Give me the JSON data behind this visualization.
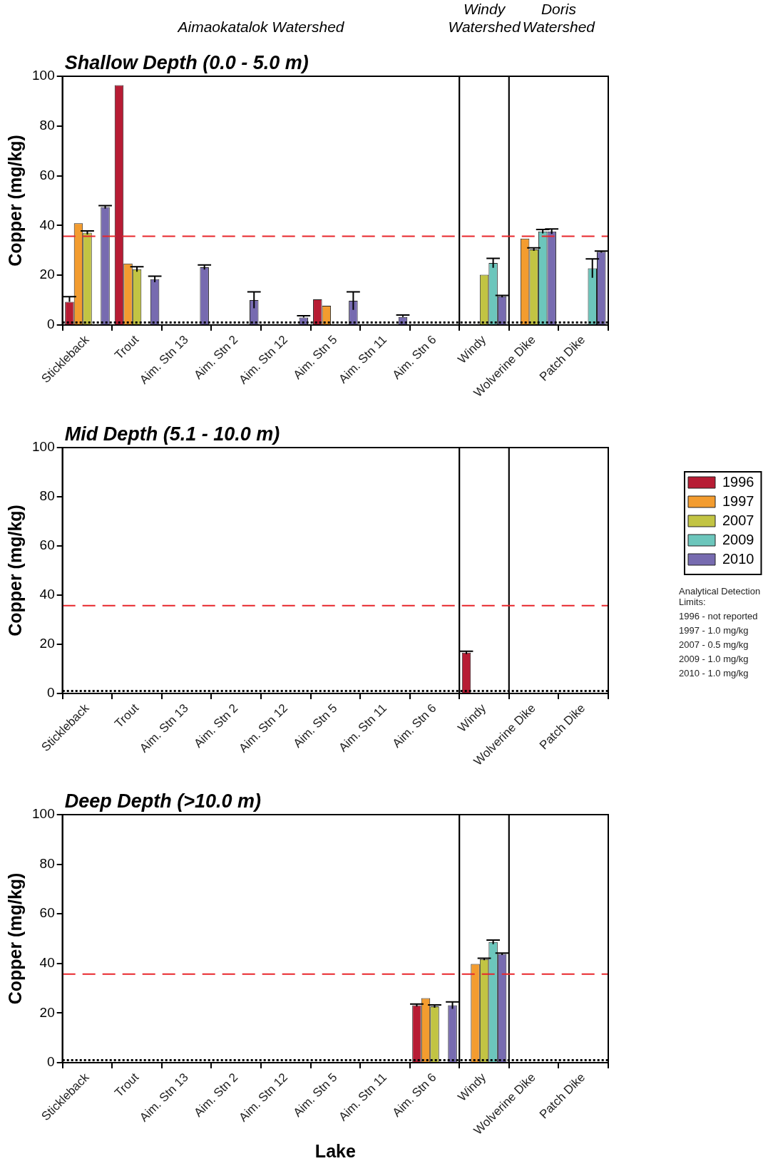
{
  "chart_data": [
    {
      "type": "bar",
      "title": "Shallow Depth (0.0 - 5.0 m)",
      "ylabel": "Copper (mg/kg)",
      "categories": [
        "Stickleback",
        "Trout",
        "Aim. Stn 13",
        "Aim. Stn 2",
        "Aim. Stn 12",
        "Aim. Stn 5",
        "Aim. Stn 11",
        "Aim. Stn 6",
        "Windy",
        "Wolverine Dike",
        "Patch Dike"
      ],
      "series": [
        {
          "color": "#b71c34",
          "values": [
            9.3,
            96.4,
            null,
            null,
            null,
            10.3,
            null,
            null,
            null,
            null,
            null
          ],
          "errors": [
            [
              9.3,
              11.4
            ],
            null,
            null,
            null,
            null,
            null,
            null,
            null,
            null,
            null,
            null
          ]
        },
        {
          "color": "#f39c2f",
          "values": [
            40.9,
            24.7,
            null,
            null,
            null,
            7.7,
            null,
            null,
            null,
            34.7,
            null
          ],
          "errors": [
            null,
            null,
            null,
            null,
            null,
            null,
            null,
            null,
            null,
            null,
            null
          ]
        },
        {
          "color": "#c2c443",
          "values": [
            37.1,
            22.4,
            null,
            null,
            null,
            null,
            null,
            null,
            20.2,
            30.4,
            null
          ],
          "errors": [
            0.7,
            1.0,
            null,
            null,
            null,
            null,
            null,
            null,
            null,
            0.6,
            null
          ]
        },
        {
          "color": "#6cc6bc",
          "values": [
            null,
            null,
            null,
            null,
            null,
            null,
            null,
            null,
            24.9,
            37.6,
            22.8
          ],
          "errors": [
            null,
            null,
            null,
            null,
            null,
            null,
            null,
            null,
            1.9,
            0.8,
            3.8
          ]
        },
        {
          "color": "#776bb0",
          "values": [
            47.4,
            18.4,
            23.2,
            10.0,
            3.0,
            9.7,
            3.2,
            null,
            11.5,
            37.6,
            29.4
          ],
          "errors": [
            0.6,
            1.2,
            0.9,
            3.3,
            [
              3.0,
              3.7
            ],
            3.6,
            [
              3.2,
              4.0
            ],
            null,
            0.4,
            1.0,
            0.3
          ]
        }
      ],
      "ylim": [
        0,
        100
      ],
      "yticks": [
        0,
        20,
        40,
        60,
        80,
        100
      ],
      "ref_lines": [
        {
          "axis": "y",
          "value": 35.7,
          "color": "#e8262b",
          "line_style": "dashed"
        },
        {
          "axis": "y",
          "value": 1,
          "color": "#000000",
          "line_style": "dotted"
        }
      ],
      "bands": [
        {
          "axis": "x",
          "from": "Stickleback",
          "to": "Aim. Stn 6",
          "label": "Aimaokatalok Watershed",
          "color": "#ffffff"
        },
        {
          "axis": "x",
          "from": "Windy",
          "to": "Windy",
          "label": "Windy Watershed",
          "color": "#ffffff"
        },
        {
          "axis": "x",
          "from": "Wolverine Dike",
          "to": "Patch Dike",
          "label": "Doris Watershed",
          "color": "#ffffff"
        }
      ]
    },
    {
      "type": "bar",
      "title": "Mid Depth (5.1 - 10.0 m)",
      "ylabel": "Copper (mg/kg)",
      "categories": [
        "Stickleback",
        "Trout",
        "Aim. Stn 13",
        "Aim. Stn 2",
        "Aim. Stn 12",
        "Aim. Stn 5",
        "Aim. Stn 11",
        "Aim. Stn 6",
        "Windy",
        "Wolverine Dike",
        "Patch Dike"
      ],
      "series": [
        {
          "name": "1996",
          "color": "#b71c34",
          "values": [
            null,
            null,
            null,
            null,
            null,
            null,
            null,
            null,
            16.6,
            null,
            null
          ],
          "errors": [
            null,
            null,
            null,
            null,
            null,
            null,
            null,
            null,
            0.6,
            null,
            null
          ]
        },
        {
          "name": "1997",
          "color": "#f39c2f",
          "values": [
            null,
            null,
            null,
            null,
            null,
            null,
            null,
            null,
            null,
            null,
            null
          ]
        },
        {
          "name": "2007",
          "color": "#c2c443",
          "values": [
            null,
            null,
            null,
            null,
            null,
            null,
            null,
            null,
            null,
            null,
            null
          ]
        },
        {
          "name": "2009",
          "color": "#6cc6bc",
          "values": [
            null,
            null,
            null,
            null,
            null,
            null,
            null,
            null,
            null,
            null,
            null
          ]
        },
        {
          "name": "2010",
          "color": "#776bb0",
          "values": [
            null,
            null,
            null,
            null,
            null,
            null,
            null,
            null,
            null,
            null,
            null
          ]
        }
      ],
      "ylim": [
        0,
        100
      ],
      "yticks": [
        0,
        20,
        40,
        60,
        80,
        100
      ],
      "legend": "right",
      "ref_lines": [
        {
          "axis": "y",
          "value": 35.7,
          "color": "#e8262b",
          "line_style": "dashed"
        },
        {
          "axis": "y",
          "value": 1,
          "color": "#000000",
          "line_style": "dotted"
        }
      ],
      "bands": [
        {
          "axis": "x",
          "from": "Stickleback",
          "to": "Aim. Stn 6",
          "color": "#ffffff"
        },
        {
          "axis": "x",
          "from": "Windy",
          "to": "Windy",
          "color": "#ffffff"
        },
        {
          "axis": "x",
          "from": "Wolverine Dike",
          "to": "Patch Dike",
          "color": "#ffffff"
        }
      ],
      "annotations": [
        "Analytical Detection Limits:",
        "1996 - not reported",
        "1997 - 1.0 mg/kg",
        "2007 - 0.5 mg/kg",
        "2009 - 1.0 mg/kg",
        "2010 - 1.0 mg/kg"
      ]
    },
    {
      "type": "bar",
      "title": "Deep Depth (>10.0 m)",
      "ylabel": "Copper (mg/kg)",
      "xlabel": "Lake",
      "categories": [
        "Stickleback",
        "Trout",
        "Aim. Stn 13",
        "Aim. Stn 2",
        "Aim. Stn 12",
        "Aim. Stn 5",
        "Aim. Stn 11",
        "Aim. Stn 6",
        "Windy",
        "Wolverine Dike",
        "Patch Dike"
      ],
      "series": [
        {
          "color": "#b71c34",
          "values": [
            null,
            null,
            null,
            null,
            null,
            null,
            null,
            23.1,
            null,
            null,
            null
          ],
          "errors": [
            null,
            null,
            null,
            null,
            null,
            null,
            null,
            0.5,
            null,
            null,
            null
          ]
        },
        {
          "color": "#f39c2f",
          "values": [
            null,
            null,
            null,
            null,
            null,
            null,
            null,
            26.0,
            39.8,
            null,
            null
          ]
        },
        {
          "color": "#c2c443",
          "values": [
            null,
            null,
            null,
            null,
            null,
            null,
            null,
            22.7,
            41.7,
            null,
            null
          ],
          "errors": [
            null,
            null,
            null,
            null,
            null,
            null,
            null,
            0.6,
            0.4,
            null,
            null
          ]
        },
        {
          "color": "#6cc6bc",
          "values": [
            null,
            null,
            null,
            null,
            null,
            null,
            null,
            null,
            48.6,
            null,
            null
          ],
          "errors": [
            null,
            null,
            null,
            null,
            null,
            null,
            null,
            null,
            0.8,
            null,
            null
          ]
        },
        {
          "color": "#776bb0",
          "values": [
            null,
            null,
            null,
            null,
            null,
            null,
            null,
            23.1,
            43.8,
            null,
            null
          ],
          "errors": [
            null,
            null,
            null,
            null,
            null,
            null,
            null,
            1.4,
            0.4,
            null,
            null
          ]
        }
      ],
      "ylim": [
        0,
        100
      ],
      "yticks": [
        0,
        20,
        40,
        60,
        80,
        100
      ],
      "ref_lines": [
        {
          "axis": "y",
          "value": 35.7,
          "color": "#e8262b",
          "line_style": "dashed"
        },
        {
          "axis": "y",
          "value": 1,
          "color": "#000000",
          "line_style": "dotted"
        }
      ],
      "bands": [
        {
          "axis": "x",
          "from": "Stickleback",
          "to": "Aim. Stn 6",
          "color": "#ffffff"
        },
        {
          "axis": "x",
          "from": "Windy",
          "to": "Windy",
          "color": "#ffffff"
        },
        {
          "axis": "x",
          "from": "Wolverine Dike",
          "to": "Patch Dike",
          "color": "#ffffff"
        }
      ]
    }
  ]
}
